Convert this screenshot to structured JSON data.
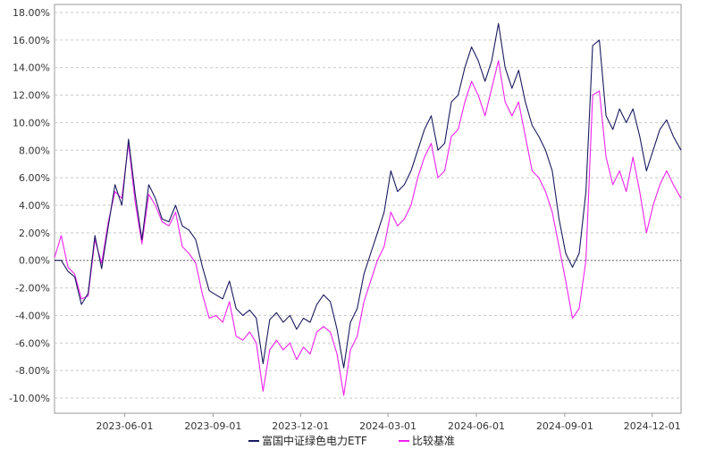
{
  "chart_data": {
    "type": "line",
    "title": "",
    "xlabel": "",
    "ylabel": "",
    "ylim": [
      -0.11,
      0.18
    ],
    "x_ticks": [
      "2023-06-01",
      "2023-09-01",
      "2023-12-01",
      "2024-03-01",
      "2024-06-01",
      "2024-09-01",
      "2024-12-01"
    ],
    "y_ticks": [
      "18.00%",
      "16.00%",
      "14.00%",
      "12.00%",
      "10.00%",
      "8.00%",
      "6.00%",
      "4.00%",
      "2.00%",
      "0.00%",
      "-2.00%",
      "-4.00%",
      "-6.00%",
      "-8.00%",
      "-10.00%"
    ],
    "grid": true,
    "legend_position": "bottom",
    "series": [
      {
        "name": "富国中证绿色电力ETF",
        "color": "#1a1a5e",
        "points": [
          [
            "2023-03-20",
            0.0
          ],
          [
            "2023-03-27",
            0.0
          ],
          [
            "2023-04-03",
            -0.8
          ],
          [
            "2023-04-10",
            -1.2
          ],
          [
            "2023-04-17",
            -3.2
          ],
          [
            "2023-04-24",
            -2.4
          ],
          [
            "2023-05-01",
            1.8
          ],
          [
            "2023-05-08",
            -0.6
          ],
          [
            "2023-05-15",
            2.5
          ],
          [
            "2023-05-22",
            5.5
          ],
          [
            "2023-05-29",
            4.0
          ],
          [
            "2023-06-05",
            8.8
          ],
          [
            "2023-06-12",
            4.8
          ],
          [
            "2023-06-19",
            1.5
          ],
          [
            "2023-06-26",
            5.5
          ],
          [
            "2023-07-03",
            4.5
          ],
          [
            "2023-07-10",
            3.0
          ],
          [
            "2023-07-17",
            2.8
          ],
          [
            "2023-07-24",
            4.0
          ],
          [
            "2023-07-31",
            2.5
          ],
          [
            "2023-08-07",
            2.2
          ],
          [
            "2023-08-14",
            1.5
          ],
          [
            "2023-08-21",
            -0.5
          ],
          [
            "2023-08-28",
            -2.2
          ],
          [
            "2023-09-04",
            -2.5
          ],
          [
            "2023-09-11",
            -2.8
          ],
          [
            "2023-09-18",
            -1.5
          ],
          [
            "2023-09-25",
            -3.5
          ],
          [
            "2023-10-02",
            -4.0
          ],
          [
            "2023-10-09",
            -3.6
          ],
          [
            "2023-10-16",
            -4.2
          ],
          [
            "2023-10-23",
            -7.5
          ],
          [
            "2023-10-30",
            -4.3
          ],
          [
            "2023-11-06",
            -3.8
          ],
          [
            "2023-11-13",
            -4.5
          ],
          [
            "2023-11-20",
            -4.0
          ],
          [
            "2023-11-27",
            -5.0
          ],
          [
            "2023-12-04",
            -4.2
          ],
          [
            "2023-12-11",
            -4.5
          ],
          [
            "2023-12-18",
            -3.2
          ],
          [
            "2023-12-25",
            -2.5
          ],
          [
            "2024-01-01",
            -3.0
          ],
          [
            "2024-01-08",
            -5.0
          ],
          [
            "2024-01-15",
            -7.8
          ],
          [
            "2024-01-22",
            -4.5
          ],
          [
            "2024-01-29",
            -3.5
          ],
          [
            "2024-02-05",
            -1.0
          ],
          [
            "2024-02-12",
            0.5
          ],
          [
            "2024-02-19",
            2.0
          ],
          [
            "2024-02-26",
            3.5
          ],
          [
            "2024-03-04",
            6.5
          ],
          [
            "2024-03-11",
            5.0
          ],
          [
            "2024-03-18",
            5.5
          ],
          [
            "2024-03-25",
            6.5
          ],
          [
            "2024-04-01",
            8.0
          ],
          [
            "2024-04-08",
            9.5
          ],
          [
            "2024-04-15",
            10.5
          ],
          [
            "2024-04-22",
            8.0
          ],
          [
            "2024-04-29",
            8.5
          ],
          [
            "2024-05-06",
            11.5
          ],
          [
            "2024-05-13",
            12.0
          ],
          [
            "2024-05-20",
            14.0
          ],
          [
            "2024-05-27",
            15.5
          ],
          [
            "2024-06-03",
            14.5
          ],
          [
            "2024-06-10",
            13.0
          ],
          [
            "2024-06-17",
            14.5
          ],
          [
            "2024-06-24",
            17.2
          ],
          [
            "2024-07-01",
            14.0
          ],
          [
            "2024-07-08",
            12.5
          ],
          [
            "2024-07-15",
            13.8
          ],
          [
            "2024-07-22",
            11.5
          ],
          [
            "2024-07-29",
            9.8
          ],
          [
            "2024-08-05",
            9.0
          ],
          [
            "2024-08-12",
            8.0
          ],
          [
            "2024-08-19",
            6.5
          ],
          [
            "2024-08-26",
            3.0
          ],
          [
            "2024-09-02",
            0.5
          ],
          [
            "2024-09-09",
            -0.5
          ],
          [
            "2024-09-16",
            0.5
          ],
          [
            "2024-09-23",
            5.0
          ],
          [
            "2024-09-30",
            15.6
          ],
          [
            "2024-10-07",
            16.0
          ],
          [
            "2024-10-14",
            10.5
          ],
          [
            "2024-10-21",
            9.5
          ],
          [
            "2024-10-28",
            11.0
          ],
          [
            "2024-11-04",
            10.0
          ],
          [
            "2024-11-11",
            11.0
          ],
          [
            "2024-11-18",
            9.0
          ],
          [
            "2024-11-25",
            6.5
          ],
          [
            "2024-12-02",
            8.0
          ],
          [
            "2024-12-09",
            9.5
          ],
          [
            "2024-12-16",
            10.2
          ],
          [
            "2024-12-23",
            9.0
          ],
          [
            "2024-12-31",
            8.0
          ]
        ]
      },
      {
        "name": "比较基准",
        "color": "#ee22ee",
        "points": [
          [
            "2023-03-20",
            0.2
          ],
          [
            "2023-03-27",
            1.8
          ],
          [
            "2023-04-03",
            -0.5
          ],
          [
            "2023-04-10",
            -1.0
          ],
          [
            "2023-04-17",
            -2.8
          ],
          [
            "2023-04-24",
            -2.6
          ],
          [
            "2023-05-01",
            1.5
          ],
          [
            "2023-05-08",
            -0.2
          ],
          [
            "2023-05-15",
            2.8
          ],
          [
            "2023-05-22",
            5.0
          ],
          [
            "2023-05-29",
            4.5
          ],
          [
            "2023-06-05",
            8.5
          ],
          [
            "2023-06-12",
            4.2
          ],
          [
            "2023-06-19",
            1.2
          ],
          [
            "2023-06-26",
            4.8
          ],
          [
            "2023-07-03",
            4.0
          ],
          [
            "2023-07-10",
            2.8
          ],
          [
            "2023-07-17",
            2.5
          ],
          [
            "2023-07-24",
            3.5
          ],
          [
            "2023-07-31",
            1.0
          ],
          [
            "2023-08-07",
            0.5
          ],
          [
            "2023-08-14",
            -0.2
          ],
          [
            "2023-08-21",
            -2.5
          ],
          [
            "2023-08-28",
            -4.2
          ],
          [
            "2023-09-04",
            -4.0
          ],
          [
            "2023-09-11",
            -4.5
          ],
          [
            "2023-09-18",
            -3.0
          ],
          [
            "2023-09-25",
            -5.5
          ],
          [
            "2023-10-02",
            -5.8
          ],
          [
            "2023-10-09",
            -5.2
          ],
          [
            "2023-10-16",
            -6.0
          ],
          [
            "2023-10-23",
            -9.5
          ],
          [
            "2023-10-30",
            -6.5
          ],
          [
            "2023-11-06",
            -5.8
          ],
          [
            "2023-11-13",
            -6.5
          ],
          [
            "2023-11-20",
            -6.0
          ],
          [
            "2023-11-27",
            -7.2
          ],
          [
            "2023-12-04",
            -6.3
          ],
          [
            "2023-12-11",
            -6.8
          ],
          [
            "2023-12-18",
            -5.2
          ],
          [
            "2023-12-25",
            -4.8
          ],
          [
            "2024-01-01",
            -5.2
          ],
          [
            "2024-01-08",
            -6.8
          ],
          [
            "2024-01-15",
            -9.8
          ],
          [
            "2024-01-22",
            -6.5
          ],
          [
            "2024-01-29",
            -5.5
          ],
          [
            "2024-02-05",
            -3.0
          ],
          [
            "2024-02-12",
            -1.5
          ],
          [
            "2024-02-19",
            0.0
          ],
          [
            "2024-02-26",
            1.0
          ],
          [
            "2024-03-04",
            3.5
          ],
          [
            "2024-03-11",
            2.5
          ],
          [
            "2024-03-18",
            3.0
          ],
          [
            "2024-03-25",
            4.0
          ],
          [
            "2024-04-01",
            6.0
          ],
          [
            "2024-04-08",
            7.5
          ],
          [
            "2024-04-15",
            8.5
          ],
          [
            "2024-04-22",
            6.0
          ],
          [
            "2024-04-29",
            6.5
          ],
          [
            "2024-05-06",
            9.0
          ],
          [
            "2024-05-13",
            9.5
          ],
          [
            "2024-05-20",
            11.5
          ],
          [
            "2024-05-27",
            13.0
          ],
          [
            "2024-06-03",
            12.0
          ],
          [
            "2024-06-10",
            10.5
          ],
          [
            "2024-06-17",
            12.5
          ],
          [
            "2024-06-24",
            14.5
          ],
          [
            "2024-07-01",
            11.5
          ],
          [
            "2024-07-08",
            10.5
          ],
          [
            "2024-07-15",
            11.5
          ],
          [
            "2024-07-22",
            9.0
          ],
          [
            "2024-07-29",
            6.5
          ],
          [
            "2024-08-05",
            6.0
          ],
          [
            "2024-08-12",
            5.0
          ],
          [
            "2024-08-19",
            3.5
          ],
          [
            "2024-08-26",
            1.0
          ],
          [
            "2024-09-02",
            -1.5
          ],
          [
            "2024-09-09",
            -4.2
          ],
          [
            "2024-09-16",
            -3.5
          ],
          [
            "2024-09-23",
            0.0
          ],
          [
            "2024-09-30",
            12.0
          ],
          [
            "2024-10-07",
            12.3
          ],
          [
            "2024-10-14",
            7.5
          ],
          [
            "2024-10-21",
            5.5
          ],
          [
            "2024-10-28",
            6.5
          ],
          [
            "2024-11-04",
            5.0
          ],
          [
            "2024-11-11",
            7.5
          ],
          [
            "2024-11-18",
            5.0
          ],
          [
            "2024-11-25",
            2.0
          ],
          [
            "2024-12-02",
            4.0
          ],
          [
            "2024-12-09",
            5.5
          ],
          [
            "2024-12-16",
            6.5
          ],
          [
            "2024-12-23",
            5.5
          ],
          [
            "2024-12-31",
            4.5
          ]
        ]
      }
    ],
    "zero_line": true
  }
}
